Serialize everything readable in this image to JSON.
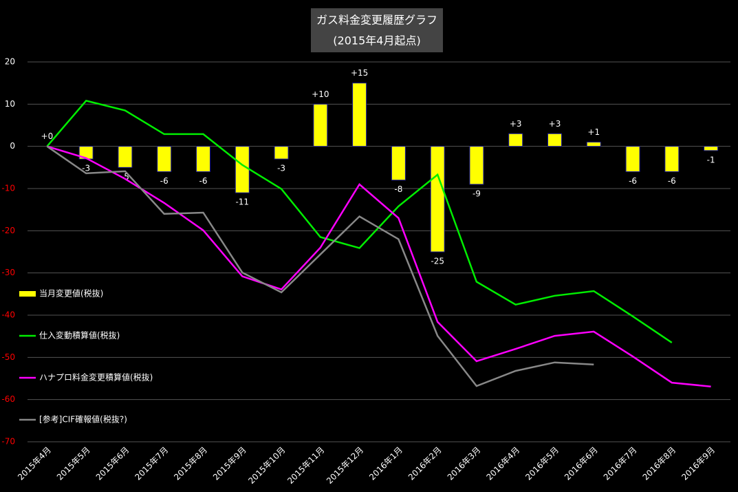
{
  "chart_data": {
    "type": "bar",
    "title": "ガス料金変更履歴グラフ",
    "subtitle": "(2015年4月起点)",
    "categories": [
      "2015年4月",
      "2015年5月",
      "2015年6月",
      "2015年7月",
      "2015年8月",
      "2015年9月",
      "2015年10月",
      "2015年11月",
      "2015年12月",
      "2016年1月",
      "2016年2月",
      "2016年3月",
      "2016年4月",
      "2016年5月",
      "2016年6月",
      "2016年7月",
      "2016年8月",
      "2016年9月"
    ],
    "series": [
      {
        "name": "当月変更値(税抜)",
        "type": "bar",
        "color": "#ffff00",
        "edge_color": "#1a1aa0",
        "values": [
          0,
          -3,
          -5,
          -6,
          -6,
          -11,
          -3,
          10,
          15,
          -8,
          -25,
          -9,
          3,
          3,
          1,
          -6,
          -6,
          -1
        ],
        "value_labels": [
          "+0",
          "-3",
          "-5",
          "-6",
          "-6",
          "-11",
          "-3",
          "+10",
          "+15",
          "-8",
          "-25",
          "-9",
          "+3",
          "+3",
          "+1",
          "-6",
          "-6",
          "-1"
        ]
      },
      {
        "name": "仕入変動積算値(税抜)",
        "type": "line",
        "color": "#00ee00",
        "values": [
          0,
          10.8,
          8.5,
          2.9,
          2.9,
          -4.4,
          -10.1,
          -21.5,
          -24.1,
          -14.2,
          -6.7,
          -32.1,
          -37.5,
          -35.4,
          -34.3,
          -40.3,
          -46.5,
          null
        ]
      },
      {
        "name": "ハナプロ料金変更積算値(税抜)",
        "type": "line",
        "color": "#ff00ff",
        "values": [
          0,
          -2.8,
          -7.7,
          -13.4,
          -19.9,
          -30.8,
          -33.9,
          -24,
          -9,
          -17,
          -41.6,
          -50.9,
          -48,
          -44.9,
          -43.9,
          -49.8,
          -56,
          -56.9
        ]
      },
      {
        "name": "[参考]CIF確報値(税抜?)",
        "type": "line",
        "color": "#888888",
        "values": [
          0,
          -6.4,
          -5.9,
          -16,
          -15.7,
          -29.9,
          -34.6,
          -25.6,
          -16.6,
          -22,
          -44.9,
          -56.8,
          -53.2,
          -51.2,
          -51.7,
          null,
          null,
          null
        ]
      }
    ],
    "ylim": [
      -70,
      20
    ],
    "yticks": [
      20,
      10,
      0,
      -10,
      -20,
      -30,
      -40,
      -50,
      -60,
      -70
    ],
    "negative_tick_color": "#ff0000",
    "grid": true,
    "legend": "left"
  }
}
